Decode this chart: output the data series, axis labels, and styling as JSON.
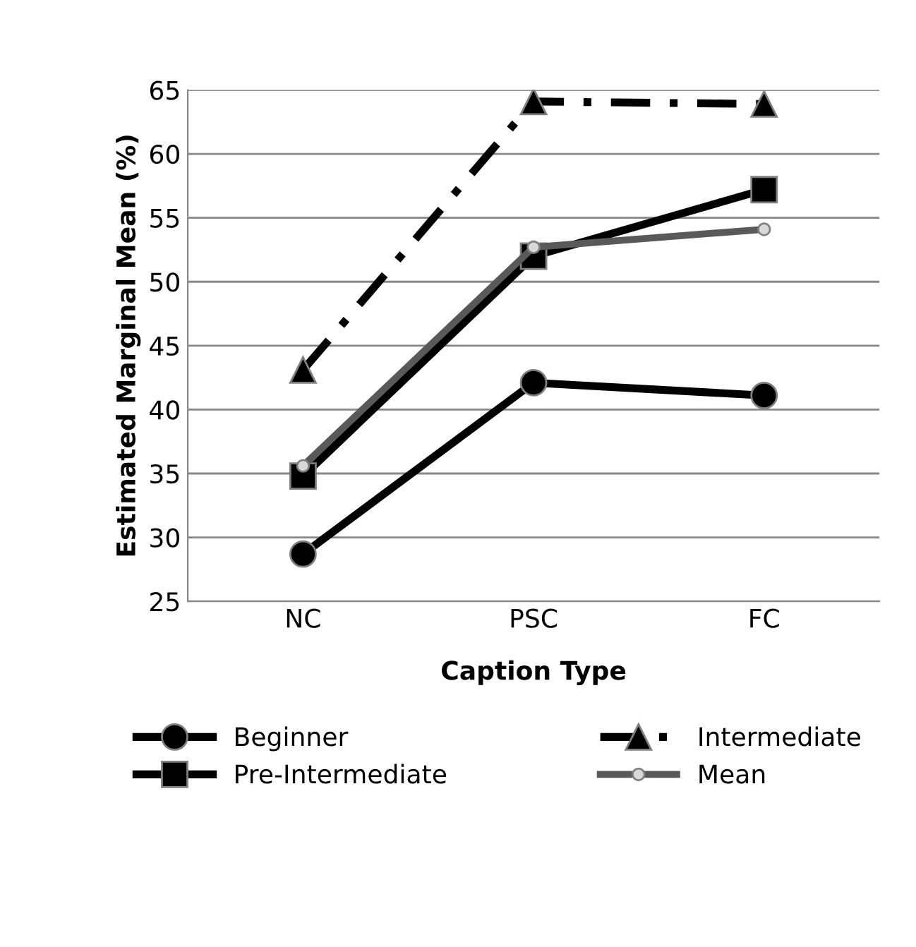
{
  "chart_data": {
    "type": "line",
    "xlabel": "Caption Type",
    "ylabel": "Estimated Marginal Mean (%)",
    "categories": [
      "NC",
      "PSC",
      "FC"
    ],
    "ylim": [
      25,
      65
    ],
    "yticks": [
      25,
      30,
      35,
      40,
      45,
      50,
      55,
      60,
      65
    ],
    "grid": "y",
    "legend": "bottom",
    "series": [
      {
        "name": "Beginner",
        "color": "#000000",
        "marker": "circle",
        "line_style": "solid",
        "values": [
          28.7,
          42.1,
          41.1
        ]
      },
      {
        "name": "Pre-Intermediate",
        "color": "#000000",
        "marker": "square",
        "line_style": "solid",
        "values": [
          34.8,
          52.0,
          57.2
        ]
      },
      {
        "name": "Intermediate",
        "color": "#000000",
        "marker": "triangle",
        "line_style": "dashed",
        "values": [
          43.1,
          64.1,
          63.9
        ]
      },
      {
        "name": "Mean",
        "color": "#595959",
        "marker": "circle",
        "line_style": "solid",
        "values": [
          35.6,
          52.7,
          54.1
        ]
      }
    ]
  }
}
